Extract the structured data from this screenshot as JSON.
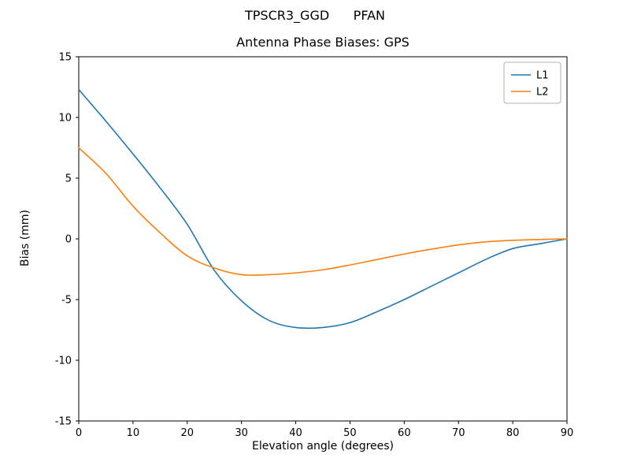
{
  "figure": {
    "suptitle": "TPSCR3_GGD      PFAN",
    "title": "Antenna Phase Biases: GPS",
    "xlabel": "Elevation angle (degrees)",
    "ylabel": "Bias (mm)"
  },
  "chart_data": {
    "type": "line",
    "suptitle": "TPSCR3_GGD      PFAN",
    "title": "Antenna Phase Biases: GPS",
    "xlabel": "Elevation angle (degrees)",
    "ylabel": "Bias (mm)",
    "xlim": [
      0,
      90
    ],
    "ylim": [
      -15,
      15
    ],
    "xticks": [
      0,
      10,
      20,
      30,
      40,
      50,
      60,
      70,
      80,
      90
    ],
    "yticks": [
      -15,
      -10,
      -5,
      0,
      5,
      10,
      15
    ],
    "grid": false,
    "legend_position": "upper right",
    "x": [
      0,
      5,
      10,
      15,
      20,
      25,
      30,
      35,
      40,
      45,
      50,
      55,
      60,
      65,
      70,
      75,
      80,
      85,
      90
    ],
    "series": [
      {
        "name": "L1",
        "color": "#1f77b4",
        "values": [
          12.3,
          9.7,
          7.0,
          4.2,
          1.2,
          -2.6,
          -5.1,
          -6.7,
          -7.3,
          -7.3,
          -6.9,
          -6.0,
          -5.0,
          -3.9,
          -2.8,
          -1.7,
          -0.8,
          -0.4,
          0.0
        ]
      },
      {
        "name": "L2",
        "color": "#ff7f0e",
        "values": [
          7.5,
          5.4,
          2.7,
          0.5,
          -1.4,
          -2.4,
          -2.95,
          -2.95,
          -2.8,
          -2.55,
          -2.15,
          -1.7,
          -1.25,
          -0.85,
          -0.5,
          -0.25,
          -0.12,
          -0.05,
          0.0
        ]
      }
    ]
  },
  "style": {
    "frame_color": "#000000",
    "tick_color": "#000000",
    "legend_border_color": "#b0b0b0",
    "legend_bg": "#ffffff"
  }
}
